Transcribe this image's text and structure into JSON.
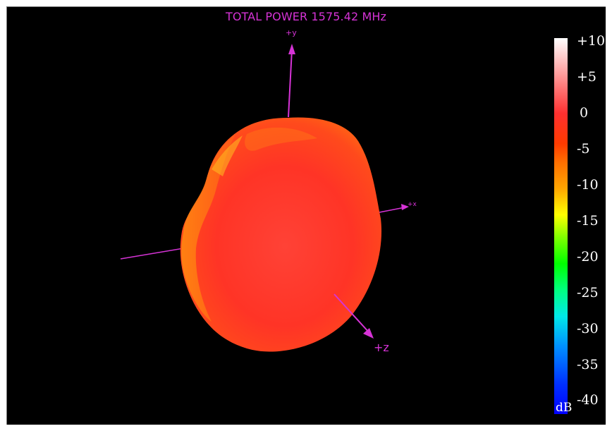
{
  "plot": {
    "title": "TOTAL POWER 1575.42 MHz",
    "accent_color": "#d633d6",
    "background_color": "#000000"
  },
  "axes": {
    "y_label": "+y",
    "x_label": "+x",
    "z_label": "+z"
  },
  "colorbar": {
    "unit": "dB",
    "ticks": [
      "+10",
      "+5",
      "0",
      "-5",
      "-10",
      "-15",
      "-20",
      "-25",
      "-30",
      "-35",
      "-40"
    ],
    "range": [
      -40,
      10
    ],
    "colors": {
      "top": "#ffffff",
      "zero": "#ff3030",
      "mid": "#ffff00",
      "low": "#00ff00",
      "bottom": "#0000ff"
    }
  },
  "radiation_pattern": {
    "icon": "3d-radiation-pattern",
    "dominant_color": "#ff3a2a"
  }
}
